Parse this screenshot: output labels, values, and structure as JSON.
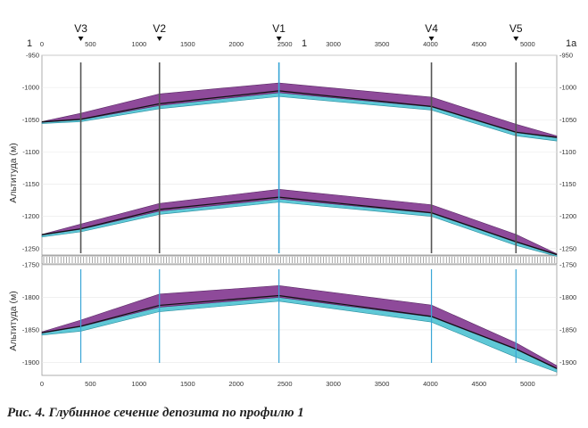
{
  "caption": "Рис. 4. Глубинное сечение депозита по профилю 1",
  "profile": {
    "start_label": "1",
    "mid_label": "1",
    "end_label": "1a"
  },
  "colors": {
    "ore": "#8e4a9a",
    "base": "#5fc8d6",
    "black_seam": "#111111",
    "well": "#555555",
    "well_blue": "#3aa6d6"
  },
  "chart_data": [
    {
      "type": "area",
      "panel": "upper",
      "ylabel": "Альтитуда (м)",
      "xlim": [
        0,
        5300
      ],
      "ylim": [
        -1260,
        -950
      ],
      "x_ticks": [
        0,
        500,
        1000,
        1500,
        2000,
        2500,
        3000,
        3500,
        4000,
        4500,
        5000
      ],
      "y_ticks": [
        -950,
        -1000,
        -1050,
        -1100,
        -1150,
        -1200,
        -1250
      ],
      "wells": [
        {
          "name": "V3",
          "x": 400
        },
        {
          "name": "V2",
          "x": 1210
        },
        {
          "name": "V1",
          "x": 2440
        },
        {
          "name": "V4",
          "x": 4010
        },
        {
          "name": "V5",
          "x": 4880
        }
      ],
      "layers": [
        {
          "x": [
            0,
            400,
            1210,
            2440,
            4010,
            4880,
            5300
          ],
          "top": [
            -1053,
            -1040,
            -1010,
            -993,
            -1015,
            -1057,
            -1075
          ],
          "bottom": [
            -1054,
            -1050,
            -1028,
            -1008,
            -1030,
            -1070,
            -1078
          ],
          "base_bottom": [
            -1056,
            -1053,
            -1033,
            -1014,
            -1035,
            -1075,
            -1083
          ]
        },
        {
          "x": [
            0,
            400,
            1210,
            2440,
            4010,
            4880,
            5300
          ],
          "top": [
            -1228,
            -1212,
            -1180,
            -1158,
            -1182,
            -1228,
            -1258
          ],
          "bottom": [
            -1229,
            -1220,
            -1192,
            -1173,
            -1195,
            -1240,
            -1260
          ],
          "base_bottom": [
            -1232,
            -1224,
            -1197,
            -1178,
            -1200,
            -1245,
            -1262
          ]
        }
      ]
    },
    {
      "type": "area",
      "panel": "lower",
      "ylabel": "Альтитуда (м)",
      "xlim": [
        0,
        5300
      ],
      "ylim": [
        -1920,
        -1750
      ],
      "x_ticks": [
        0,
        500,
        1000,
        1500,
        2000,
        2500,
        3000,
        3500,
        4000,
        4500,
        5000
      ],
      "y_ticks": [
        -1750,
        -1800,
        -1850,
        -1900
      ],
      "layers": [
        {
          "x": [
            0,
            400,
            1210,
            2440,
            4010,
            4880,
            5300
          ],
          "top": [
            -1853,
            -1835,
            -1795,
            -1782,
            -1812,
            -1870,
            -1905
          ],
          "bottom": [
            -1855,
            -1845,
            -1815,
            -1800,
            -1830,
            -1880,
            -1910
          ],
          "base_bottom": [
            -1858,
            -1852,
            -1822,
            -1806,
            -1838,
            -1892,
            -1915
          ]
        }
      ]
    }
  ]
}
